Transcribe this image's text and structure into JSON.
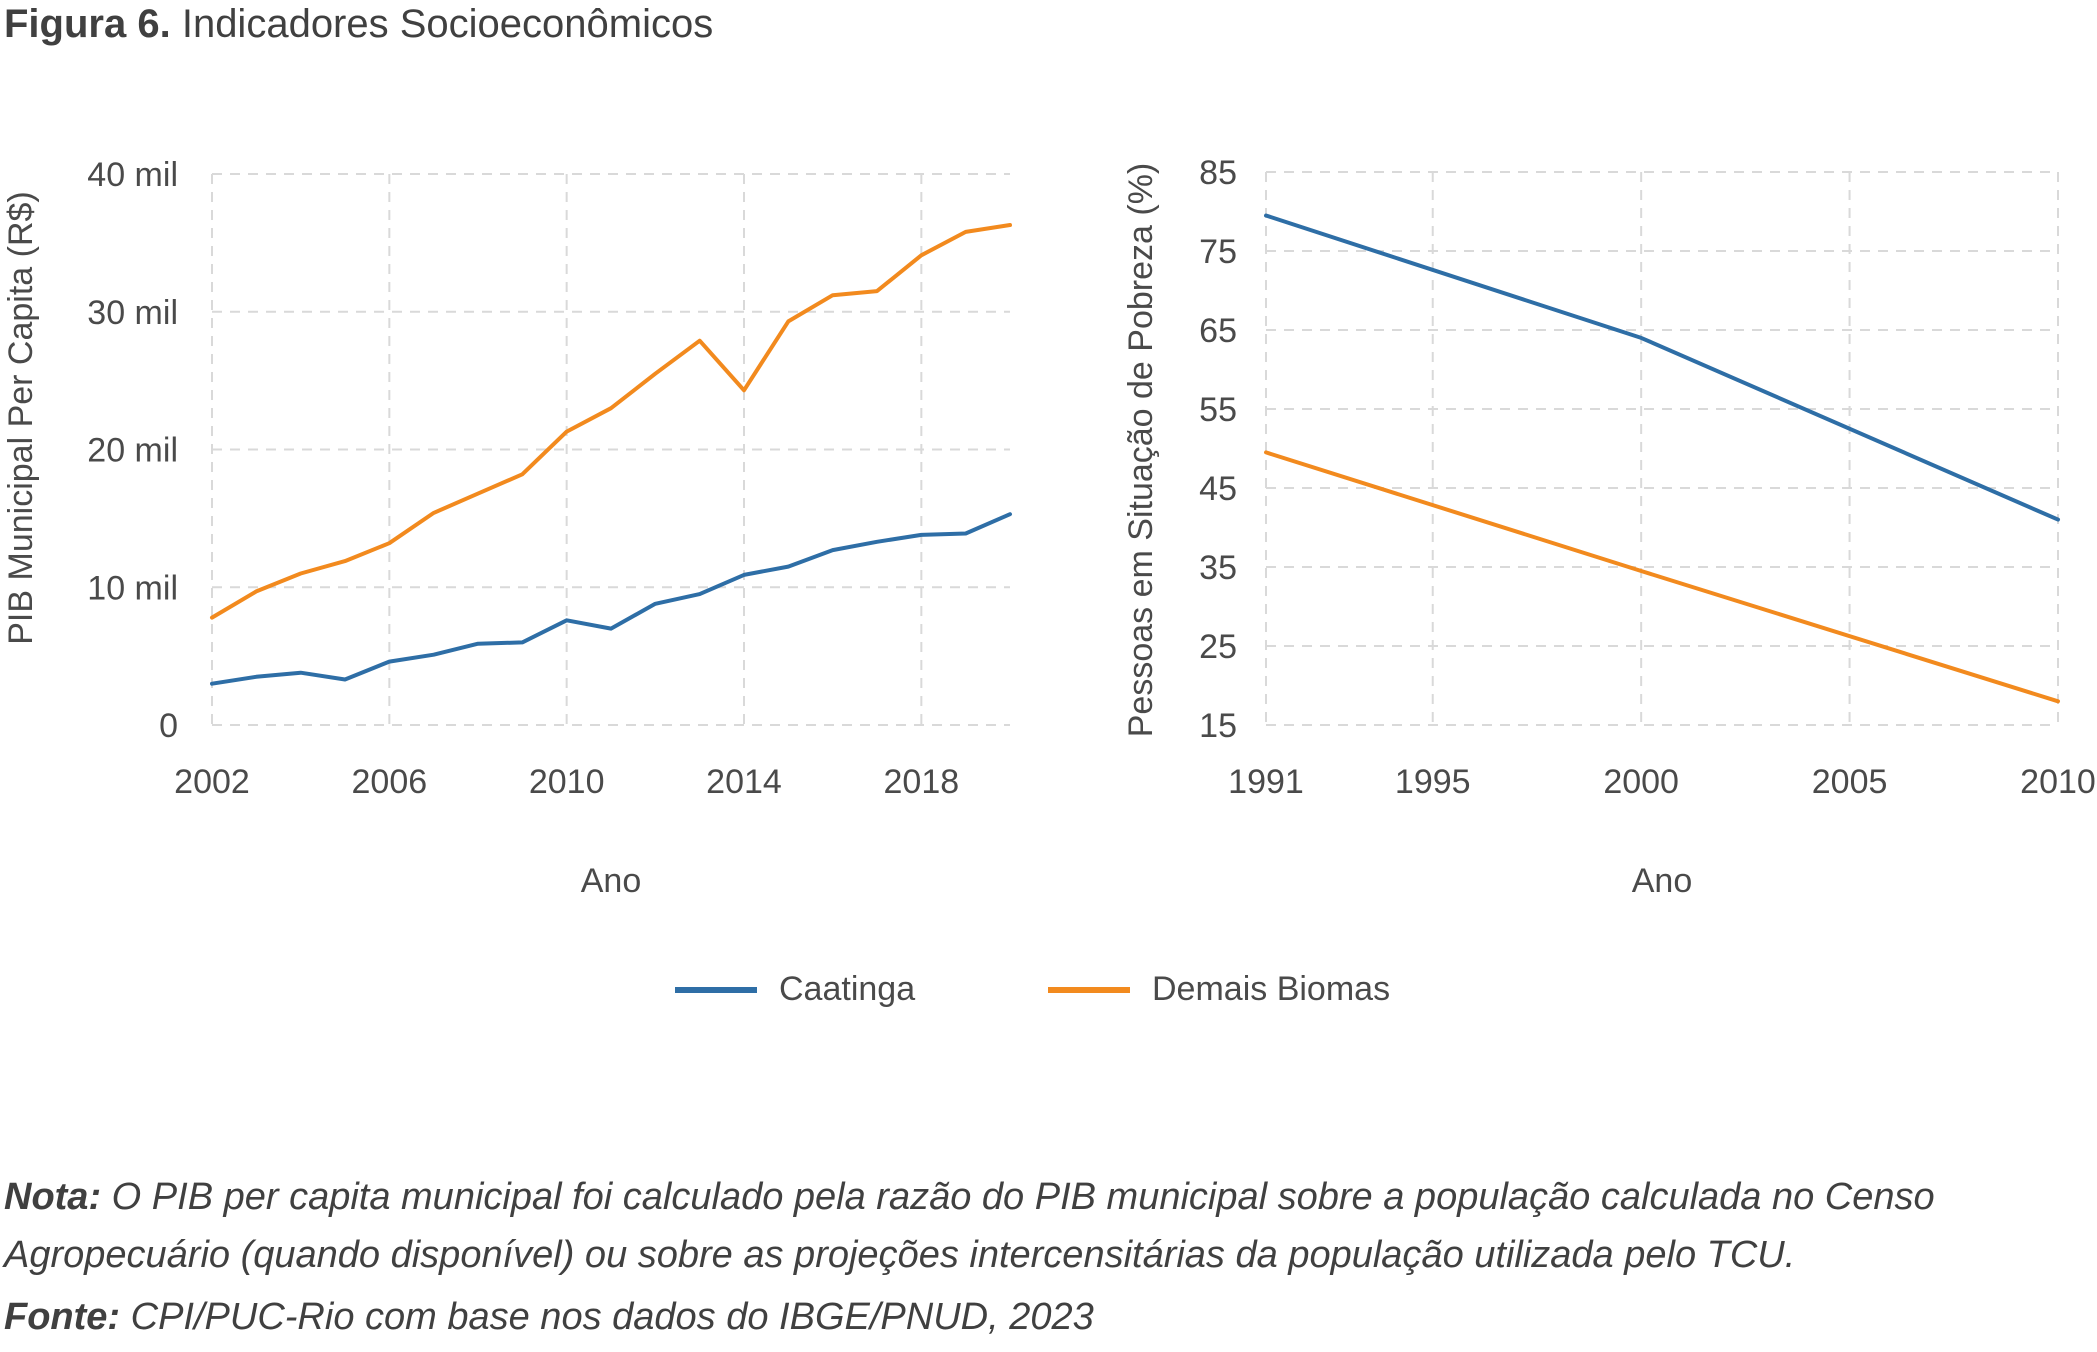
{
  "figure": {
    "label": "Figura 6.",
    "title": "Indicadores Socioeconômicos"
  },
  "chart_data": [
    {
      "type": "line",
      "ylabel": "PIB Municipal Per Capita (R$)",
      "xlabel": "Ano",
      "ylim": [
        0,
        40000
      ],
      "xlim": [
        2002,
        2020
      ],
      "yticks": [
        0,
        10000,
        20000,
        30000,
        40000
      ],
      "ytick_labels": [
        "0",
        "10 mil",
        "20 mil",
        "30 mil",
        "40 mil"
      ],
      "xticks": [
        2002,
        2006,
        2010,
        2014,
        2018
      ],
      "xtick_labels": [
        "2002",
        "2006",
        "2010",
        "2014",
        "2018"
      ],
      "grid": true,
      "x": [
        2002,
        2003,
        2004,
        2005,
        2006,
        2007,
        2008,
        2009,
        2010,
        2011,
        2012,
        2013,
        2014,
        2015,
        2016,
        2017,
        2018,
        2019,
        2020
      ],
      "series": [
        {
          "name": "Caatinga",
          "color": "#2e6ea6",
          "values": [
            3000,
            3500,
            3800,
            3300,
            4600,
            5100,
            5900,
            6000,
            7600,
            7000,
            8800,
            9500,
            10900,
            11500,
            12700,
            13300,
            13800,
            13900,
            15300
          ]
        },
        {
          "name": "Demais Biomas",
          "color": "#f28a1e",
          "values": [
            7800,
            9700,
            11000,
            11900,
            13200,
            15400,
            16800,
            18200,
            21300,
            23000,
            25500,
            27900,
            24300,
            29300,
            31200,
            31500,
            34100,
            35800,
            36300
          ]
        }
      ]
    },
    {
      "type": "line",
      "ylabel": "Pessoas em Situação de Pobreza (%)",
      "xlabel": "Ano",
      "ylim": [
        15,
        85
      ],
      "xlim": [
        1991,
        2010
      ],
      "yticks": [
        15,
        25,
        35,
        45,
        55,
        65,
        75,
        85
      ],
      "ytick_labels": [
        "15",
        "25",
        "35",
        "45",
        "55",
        "65",
        "75",
        "85"
      ],
      "xticks": [
        1991,
        1995,
        2000,
        2005,
        2010
      ],
      "xtick_labels": [
        "1991",
        "1995",
        "2000",
        "2005",
        "2010"
      ],
      "grid": true,
      "x": [
        1991,
        2000,
        2010
      ],
      "series": [
        {
          "name": "Caatinga",
          "color": "#2e6ea6",
          "values": [
            79.5,
            64,
            41
          ]
        },
        {
          "name": "Demais Biomas",
          "color": "#f28a1e",
          "values": [
            49.5,
            34.5,
            18
          ]
        }
      ]
    }
  ],
  "legend": [
    {
      "label": "Caatinga",
      "color": "#2e6ea6"
    },
    {
      "label": "Demais Biomas",
      "color": "#f28a1e"
    }
  ],
  "note": {
    "label": "Nota:",
    "text": "O PIB per capita municipal foi calculado pela razão do PIB municipal sobre a população calculada no Censo Agropecuário (quando disponível) ou  sobre as projeções intercensitárias da população utilizada pelo TCU."
  },
  "source": {
    "label": "Fonte:",
    "text": "CPI/PUC-Rio com base nos dados do IBGE/PNUD, 2023"
  }
}
